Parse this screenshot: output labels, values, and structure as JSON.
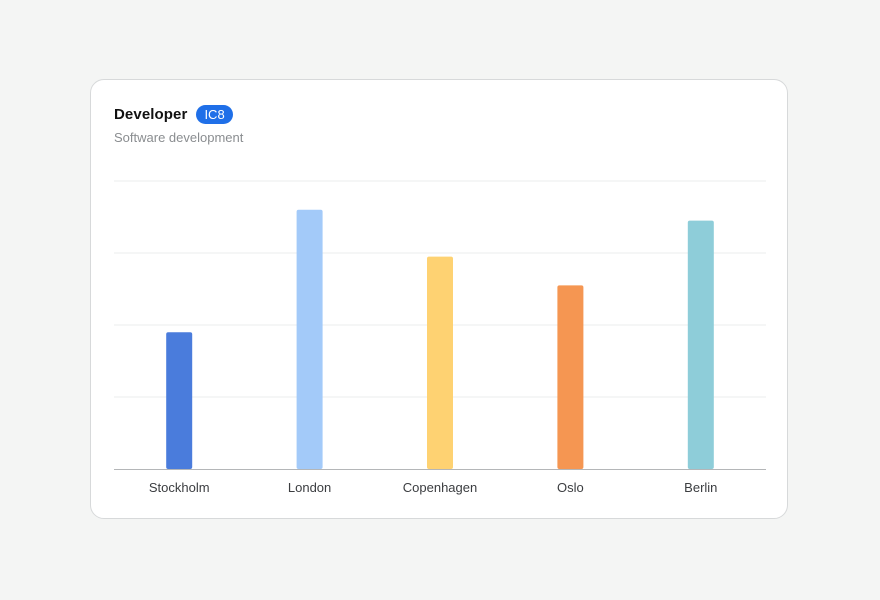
{
  "card": {
    "title": "Developer",
    "badge": "IC8",
    "subtitle": "Software development"
  },
  "chart_data": {
    "type": "bar",
    "categories": [
      "Stockholm",
      "London",
      "Copenhagen",
      "Oslo",
      "Berlin"
    ],
    "values": [
      38,
      72,
      59,
      51,
      69
    ],
    "colors": [
      "#4a7cdc",
      "#a3caf9",
      "#fed272",
      "#f59652",
      "#8ecdd9"
    ],
    "ylim": [
      0,
      80
    ],
    "grid": true,
    "title": "",
    "xlabel": "",
    "ylabel": ""
  }
}
